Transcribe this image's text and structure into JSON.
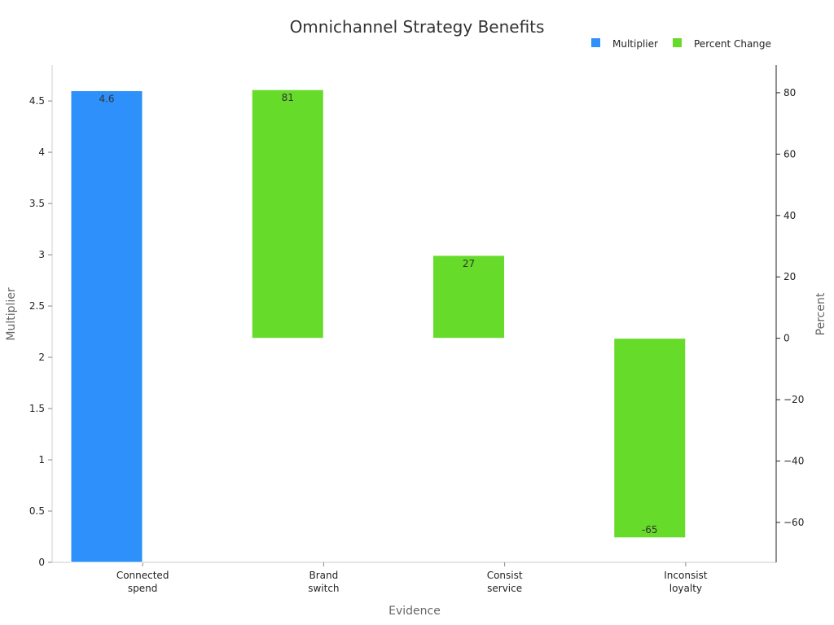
{
  "chart_data": {
    "type": "bar",
    "title": "Omnichannel Strategy Benefits",
    "xlabel": "Evidence",
    "ylabel_left": "Multiplier",
    "ylabel_right": "Percent",
    "categories": [
      [
        "Connected",
        "spend"
      ],
      [
        "Brand",
        "switch"
      ],
      [
        "Consist",
        "service"
      ],
      [
        "Inconsist",
        "loyalty"
      ]
    ],
    "series": [
      {
        "name": "Multiplier",
        "axis": "left",
        "color": "#2E90FA",
        "values": [
          4.6,
          null,
          null,
          null
        ],
        "labels": [
          "4.6",
          "",
          "",
          ""
        ]
      },
      {
        "name": "Percent Change",
        "axis": "right",
        "color": "#66DB2A",
        "values": [
          null,
          81,
          27,
          -65
        ],
        "labels": [
          "",
          "81",
          "27",
          "-65"
        ]
      }
    ],
    "ylim_left": [
      0,
      4.85
    ],
    "yticks_left": [
      "0",
      "0.5",
      "1",
      "1.5",
      "2",
      "2.5",
      "3",
      "3.5",
      "4",
      "4.5"
    ],
    "ylim_right": [
      -73,
      89
    ],
    "yticks_right": [
      "−60",
      "−40",
      "−20",
      "0",
      "20",
      "40",
      "60",
      "80"
    ],
    "legend_position": "top-right",
    "grid": false
  }
}
